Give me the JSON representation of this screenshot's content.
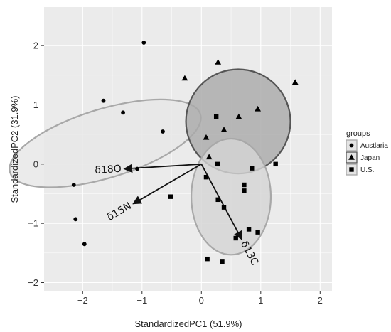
{
  "chart_data": {
    "type": "scatter",
    "xlabel": "StandardizedPC1 (51.9%)",
    "ylabel": "StandardizedPC2 (31.9%)",
    "xlim": [
      -2.65,
      2.2
    ],
    "ylim": [
      -2.15,
      2.65
    ],
    "xticks": [
      -2,
      -1,
      0,
      1,
      2
    ],
    "yticks": [
      -2,
      -1,
      0,
      1,
      2
    ],
    "xtick_labels": [
      "−2",
      "−1",
      "0",
      "1",
      "2"
    ],
    "ytick_labels": [
      "−2",
      "−1",
      "0",
      "1",
      "2"
    ],
    "grid": true,
    "legend": {
      "title": "groups",
      "placement": "right",
      "entries": [
        {
          "label": "Austlaria",
          "marker": "circle"
        },
        {
          "label": "Japan",
          "marker": "triangle"
        },
        {
          "label": "U.S.",
          "marker": "square"
        }
      ]
    },
    "series": [
      {
        "name": "Austlaria",
        "marker": "circle",
        "points": [
          {
            "x": -0.97,
            "y": 2.05
          },
          {
            "x": -1.65,
            "y": 1.07
          },
          {
            "x": -1.32,
            "y": 0.87
          },
          {
            "x": -0.65,
            "y": 0.55
          },
          {
            "x": -1.08,
            "y": -0.08
          },
          {
            "x": -2.15,
            "y": -0.35
          },
          {
            "x": -2.12,
            "y": -0.93
          },
          {
            "x": -1.97,
            "y": -1.35
          }
        ]
      },
      {
        "name": "Japan",
        "marker": "triangle",
        "points": [
          {
            "x": 0.28,
            "y": 1.72
          },
          {
            "x": -0.28,
            "y": 1.45
          },
          {
            "x": 1.58,
            "y": 1.38
          },
          {
            "x": 0.95,
            "y": 0.93
          },
          {
            "x": 0.63,
            "y": 0.8
          },
          {
            "x": 0.38,
            "y": 0.58
          },
          {
            "x": 0.08,
            "y": 0.45
          },
          {
            "x": 0.13,
            "y": 0.12
          }
        ]
      },
      {
        "name": "U.S.",
        "marker": "square",
        "points": [
          {
            "x": 0.25,
            "y": 0.8
          },
          {
            "x": 0.27,
            "y": 0.0
          },
          {
            "x": 0.85,
            "y": -0.07
          },
          {
            "x": 1.25,
            "y": 0.0
          },
          {
            "x": 0.08,
            "y": -0.22
          },
          {
            "x": 0.72,
            "y": -0.35
          },
          {
            "x": 0.72,
            "y": -0.45
          },
          {
            "x": -0.52,
            "y": -0.55
          },
          {
            "x": 0.28,
            "y": -0.6
          },
          {
            "x": 0.38,
            "y": -0.73
          },
          {
            "x": 0.8,
            "y": -1.1
          },
          {
            "x": 0.95,
            "y": -1.15
          },
          {
            "x": 0.58,
            "y": -1.25
          },
          {
            "x": 0.1,
            "y": -1.6
          },
          {
            "x": 0.35,
            "y": -1.65
          }
        ]
      }
    ],
    "ellipses": [
      {
        "group": "Austlaria",
        "cx": -1.62,
        "cy": 0.35,
        "rx": 0.58,
        "ry": 1.68,
        "angle_deg": 107,
        "fill": "#e6e6e6",
        "stroke": "#a8a8a8"
      },
      {
        "group": "Japan",
        "cx": 0.62,
        "cy": 0.72,
        "rx": 0.88,
        "ry": 0.88,
        "angle_deg": 0,
        "fill": "#a9a9a9",
        "stroke": "#555555"
      },
      {
        "group": "U.S.",
        "cx": 0.5,
        "cy": -0.55,
        "rx": 0.67,
        "ry": 0.98,
        "angle_deg": 0,
        "fill": "#d4d4d4",
        "stroke": "#a8a8a8"
      }
    ],
    "vectors": [
      {
        "label": "δ18O",
        "x": -1.3,
        "y": -0.08
      },
      {
        "label": "δ15N",
        "x": -1.15,
        "y": -0.67
      },
      {
        "label": "δ13C",
        "x": 0.68,
        "y": -1.27
      }
    ],
    "colors": {
      "panel_background": "#ebebeb",
      "grid": "#ffffff",
      "point": "#000000",
      "vector": "#111111"
    }
  }
}
